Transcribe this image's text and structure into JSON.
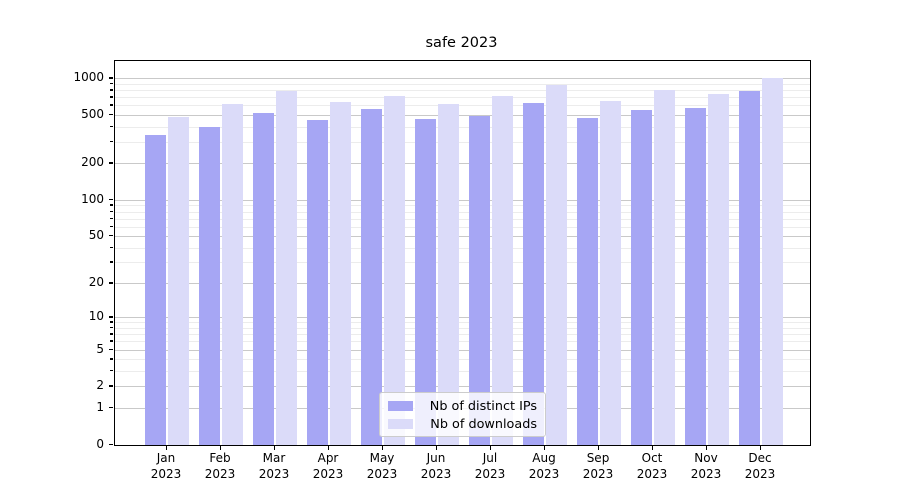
{
  "figure": {
    "title": "safe 2023"
  },
  "chart_data": {
    "type": "bar",
    "title": "safe 2023",
    "categories": [
      "Jan 2023",
      "Feb 2023",
      "Mar 2023",
      "Apr 2023",
      "May 2023",
      "Jun 2023",
      "Jul 2023",
      "Aug 2023",
      "Sep 2023",
      "Oct 2023",
      "Nov 2023",
      "Dec 2023"
    ],
    "series": [
      {
        "name": "Nb of distinct IPs",
        "color": "#a6a6f4",
        "values": [
          340,
          400,
          520,
          455,
          565,
          460,
          495,
          630,
          475,
          545,
          575,
          790
        ]
      },
      {
        "name": "Nb of downloads",
        "color": "#dbdbf9",
        "values": [
          480,
          610,
          780,
          645,
          715,
          615,
          710,
          885,
          655,
          800,
          745,
          1000
        ]
      }
    ],
    "yscale": "log1p",
    "xlabel": "",
    "ylabel": "",
    "ylim": [
      0,
      1390
    ],
    "yticks_major": [
      1000,
      500,
      200,
      100,
      50,
      20,
      10,
      5,
      2,
      1,
      0
    ],
    "yticks_minor": [
      900,
      800,
      700,
      600,
      400,
      300,
      90,
      80,
      70,
      60,
      40,
      30,
      9,
      8,
      7,
      6,
      4,
      3
    ],
    "grid": true,
    "legend_position": "lower center"
  },
  "colors": {
    "grid_major": "#c9c9c9",
    "grid_minor": "#ececec",
    "spine": "#000000"
  }
}
